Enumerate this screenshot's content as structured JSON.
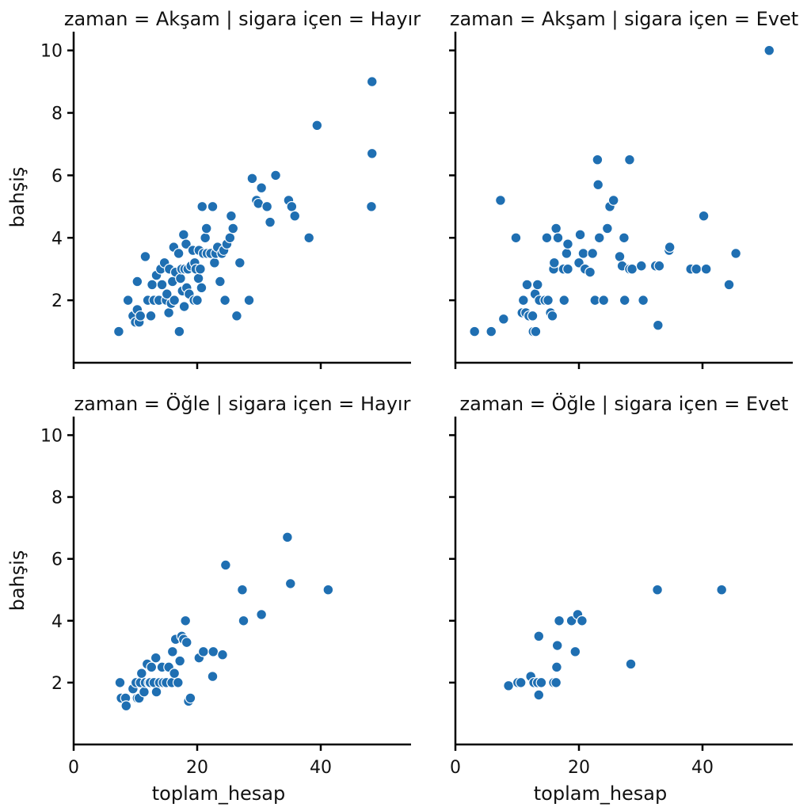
{
  "chart_data": {
    "type": "scatter",
    "xlabel": "toplam_hesap",
    "ylabel": "bahşiş",
    "xlim": [
      0,
      54
    ],
    "ylim": [
      0,
      10.6
    ],
    "xticks": [
      0,
      20,
      40
    ],
    "yticks": [
      2,
      4,
      6,
      8,
      10
    ],
    "color": "#1f6fb2",
    "panels": [
      {
        "title": "zaman = Akşam | sigara içen = Hayır",
        "points": [
          [
            7.3,
            1.0
          ],
          [
            8.8,
            2.0
          ],
          [
            9.6,
            1.5
          ],
          [
            10.0,
            1.3
          ],
          [
            10.3,
            1.7
          ],
          [
            10.6,
            1.3
          ],
          [
            10.3,
            2.6
          ],
          [
            10.8,
            1.5
          ],
          [
            11.6,
            3.4
          ],
          [
            12.0,
            2.0
          ],
          [
            12.5,
            1.5
          ],
          [
            12.7,
            2.5
          ],
          [
            13.0,
            2.0
          ],
          [
            13.4,
            2.8
          ],
          [
            13.8,
            2.0
          ],
          [
            14.1,
            3.0
          ],
          [
            14.3,
            2.5
          ],
          [
            14.7,
            3.2
          ],
          [
            15.0,
            2.0
          ],
          [
            15.1,
            2.2
          ],
          [
            15.4,
            1.6
          ],
          [
            15.5,
            3.0
          ],
          [
            15.8,
            1.9
          ],
          [
            16.0,
            2.6
          ],
          [
            16.2,
            3.7
          ],
          [
            16.3,
            2.0
          ],
          [
            16.5,
            2.9
          ],
          [
            17.0,
            3.5
          ],
          [
            17.1,
            1.0
          ],
          [
            17.3,
            2.7
          ],
          [
            17.5,
            3.0
          ],
          [
            17.6,
            2.3
          ],
          [
            17.8,
            4.1
          ],
          [
            17.9,
            1.8
          ],
          [
            18.0,
            3.0
          ],
          [
            18.2,
            3.8
          ],
          [
            18.3,
            2.4
          ],
          [
            18.5,
            3.0
          ],
          [
            18.7,
            2.2
          ],
          [
            19.0,
            3.1
          ],
          [
            19.3,
            3.6
          ],
          [
            19.5,
            2.0
          ],
          [
            19.6,
            3.2
          ],
          [
            19.8,
            3.0
          ],
          [
            20.0,
            2.0
          ],
          [
            20.2,
            2.7
          ],
          [
            20.3,
            3.6
          ],
          [
            20.5,
            3.0
          ],
          [
            20.7,
            2.4
          ],
          [
            20.8,
            5.0
          ],
          [
            21.0,
            3.5
          ],
          [
            21.3,
            4.0
          ],
          [
            21.5,
            4.3
          ],
          [
            21.6,
            3.5
          ],
          [
            22.2,
            3.5
          ],
          [
            22.5,
            5.0
          ],
          [
            22.8,
            3.2
          ],
          [
            23.0,
            3.5
          ],
          [
            23.3,
            3.7
          ],
          [
            23.7,
            2.6
          ],
          [
            24.0,
            3.5
          ],
          [
            24.3,
            3.6
          ],
          [
            24.5,
            2.0
          ],
          [
            24.8,
            3.8
          ],
          [
            25.3,
            4.0
          ],
          [
            25.5,
            4.7
          ],
          [
            25.8,
            4.3
          ],
          [
            26.4,
            1.5
          ],
          [
            26.9,
            3.2
          ],
          [
            28.4,
            2.0
          ],
          [
            28.9,
            5.9
          ],
          [
            29.6,
            5.2
          ],
          [
            29.9,
            5.1
          ],
          [
            30.4,
            5.6
          ],
          [
            31.3,
            5.0
          ],
          [
            31.8,
            4.5
          ],
          [
            32.7,
            6.0
          ],
          [
            34.8,
            5.2
          ],
          [
            35.3,
            5.0
          ],
          [
            35.8,
            4.7
          ],
          [
            38.1,
            4.0
          ],
          [
            39.4,
            7.6
          ],
          [
            48.3,
            9.0
          ],
          [
            48.3,
            6.7
          ],
          [
            48.2,
            5.0
          ]
        ]
      },
      {
        "title": "zaman = Akşam | sigara içen = Evet",
        "points": [
          [
            3.1,
            1.0
          ],
          [
            5.8,
            1.0
          ],
          [
            7.3,
            5.2
          ],
          [
            7.8,
            1.4
          ],
          [
            9.8,
            4.0
          ],
          [
            10.8,
            1.6
          ],
          [
            11.0,
            2.0
          ],
          [
            11.4,
            1.6
          ],
          [
            11.6,
            2.5
          ],
          [
            11.9,
            1.5
          ],
          [
            12.5,
            1.5
          ],
          [
            12.6,
            1.0
          ],
          [
            12.9,
            2.2
          ],
          [
            13.0,
            1.0
          ],
          [
            13.3,
            2.5
          ],
          [
            13.6,
            2.0
          ],
          [
            14.5,
            2.0
          ],
          [
            14.8,
            4.0
          ],
          [
            15.0,
            2.0
          ],
          [
            15.4,
            1.6
          ],
          [
            15.7,
            1.5
          ],
          [
            15.9,
            3.0
          ],
          [
            16.0,
            3.2
          ],
          [
            16.3,
            4.3
          ],
          [
            16.6,
            4.0
          ],
          [
            17.5,
            3.0
          ],
          [
            17.6,
            2.0
          ],
          [
            18.0,
            3.5
          ],
          [
            18.2,
            3.8
          ],
          [
            18.2,
            3.0
          ],
          [
            20.0,
            3.2
          ],
          [
            20.2,
            4.1
          ],
          [
            20.7,
            3.5
          ],
          [
            21.0,
            3.0
          ],
          [
            21.8,
            2.9
          ],
          [
            22.2,
            3.5
          ],
          [
            22.6,
            2.0
          ],
          [
            23.0,
            6.5
          ],
          [
            23.1,
            5.7
          ],
          [
            23.3,
            4.0
          ],
          [
            24.0,
            2.0
          ],
          [
            24.6,
            4.3
          ],
          [
            25.0,
            5.0
          ],
          [
            25.6,
            5.2
          ],
          [
            26.6,
            3.4
          ],
          [
            27.0,
            3.1
          ],
          [
            27.3,
            4.0
          ],
          [
            27.4,
            2.0
          ],
          [
            28.2,
            6.5
          ],
          [
            28.2,
            3.0
          ],
          [
            28.6,
            3.0
          ],
          [
            30.1,
            3.1
          ],
          [
            30.4,
            2.0
          ],
          [
            32.4,
            3.1
          ],
          [
            32.8,
            1.2
          ],
          [
            33.0,
            3.1
          ],
          [
            34.6,
            3.6
          ],
          [
            34.7,
            3.7
          ],
          [
            38.1,
            3.0
          ],
          [
            39.0,
            3.0
          ],
          [
            40.2,
            4.7
          ],
          [
            40.6,
            3.0
          ],
          [
            44.3,
            2.5
          ],
          [
            45.4,
            3.5
          ],
          [
            50.8,
            10.0
          ]
        ]
      },
      {
        "title": "zaman = Öğle | sigara içen = Hayır",
        "points": [
          [
            7.5,
            2.0
          ],
          [
            7.7,
            1.5
          ],
          [
            8.4,
            1.5
          ],
          [
            8.5,
            1.25
          ],
          [
            9.6,
            1.8
          ],
          [
            10.1,
            2.0
          ],
          [
            10.3,
            1.5
          ],
          [
            10.6,
            1.5
          ],
          [
            10.8,
            2.0
          ],
          [
            11.0,
            2.3
          ],
          [
            11.4,
            1.7
          ],
          [
            11.6,
            2.0
          ],
          [
            11.9,
            2.6
          ],
          [
            12.2,
            2.0
          ],
          [
            12.4,
            2.0
          ],
          [
            12.6,
            2.5
          ],
          [
            13.0,
            2.0
          ],
          [
            13.3,
            2.8
          ],
          [
            13.4,
            1.7
          ],
          [
            13.9,
            2.0
          ],
          [
            14.3,
            2.5
          ],
          [
            14.5,
            2.0
          ],
          [
            15.0,
            2.0
          ],
          [
            15.4,
            2.5
          ],
          [
            15.9,
            2.0
          ],
          [
            16.0,
            3.0
          ],
          [
            16.3,
            2.3
          ],
          [
            16.5,
            3.4
          ],
          [
            16.9,
            2.0
          ],
          [
            17.2,
            2.7
          ],
          [
            17.5,
            3.5
          ],
          [
            17.8,
            3.4
          ],
          [
            18.1,
            4.0
          ],
          [
            18.3,
            3.3
          ],
          [
            18.6,
            1.4
          ],
          [
            18.9,
            1.5
          ],
          [
            20.3,
            2.8
          ],
          [
            21.0,
            3.0
          ],
          [
            22.5,
            2.2
          ],
          [
            22.6,
            3.0
          ],
          [
            24.1,
            2.9
          ],
          [
            24.6,
            5.8
          ],
          [
            27.3,
            5.0
          ],
          [
            27.5,
            4.0
          ],
          [
            30.4,
            4.2
          ],
          [
            34.6,
            6.7
          ],
          [
            35.1,
            5.2
          ],
          [
            41.2,
            5.0
          ]
        ]
      },
      {
        "title": "zaman = Öğle | sigara içen = Evet",
        "points": [
          [
            8.6,
            1.9
          ],
          [
            10.1,
            2.0
          ],
          [
            10.6,
            2.0
          ],
          [
            12.2,
            2.2
          ],
          [
            12.7,
            2.0
          ],
          [
            13.3,
            2.0
          ],
          [
            13.5,
            3.5
          ],
          [
            13.5,
            1.6
          ],
          [
            13.9,
            2.0
          ],
          [
            15.9,
            2.0
          ],
          [
            16.3,
            2.0
          ],
          [
            16.4,
            2.5
          ],
          [
            16.5,
            3.2
          ],
          [
            16.8,
            4.0
          ],
          [
            18.8,
            4.0
          ],
          [
            19.4,
            3.0
          ],
          [
            19.8,
            4.2
          ],
          [
            20.5,
            4.0
          ],
          [
            28.4,
            2.6
          ],
          [
            32.7,
            5.0
          ],
          [
            43.1,
            5.0
          ]
        ]
      }
    ]
  }
}
